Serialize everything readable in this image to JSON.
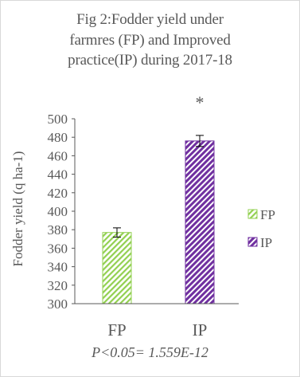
{
  "chart_data": {
    "type": "bar",
    "title_lines": [
      "Fig 2:Fodder yield under",
      "farmres (FP) and Improved",
      "practice(IP) during 2017-18"
    ],
    "ylabel": "Fodder yield (q ha-1)",
    "categories": [
      "FP",
      "IP"
    ],
    "values": [
      377,
      476
    ],
    "error": [
      5,
      6
    ],
    "annotations": [
      "",
      "*"
    ],
    "ylim": [
      300,
      500
    ],
    "yticks": [
      300,
      320,
      340,
      360,
      380,
      400,
      420,
      440,
      460,
      480,
      500
    ],
    "grid": false,
    "legend_position": "right",
    "series": [
      {
        "name": "FP",
        "color": "#92d050",
        "pattern": "diagonal-hatch"
      },
      {
        "name": "IP",
        "color": "#7030a0",
        "pattern": "diagonal-hatch"
      }
    ],
    "footnote": "P<0.05= 1.559E-12"
  }
}
